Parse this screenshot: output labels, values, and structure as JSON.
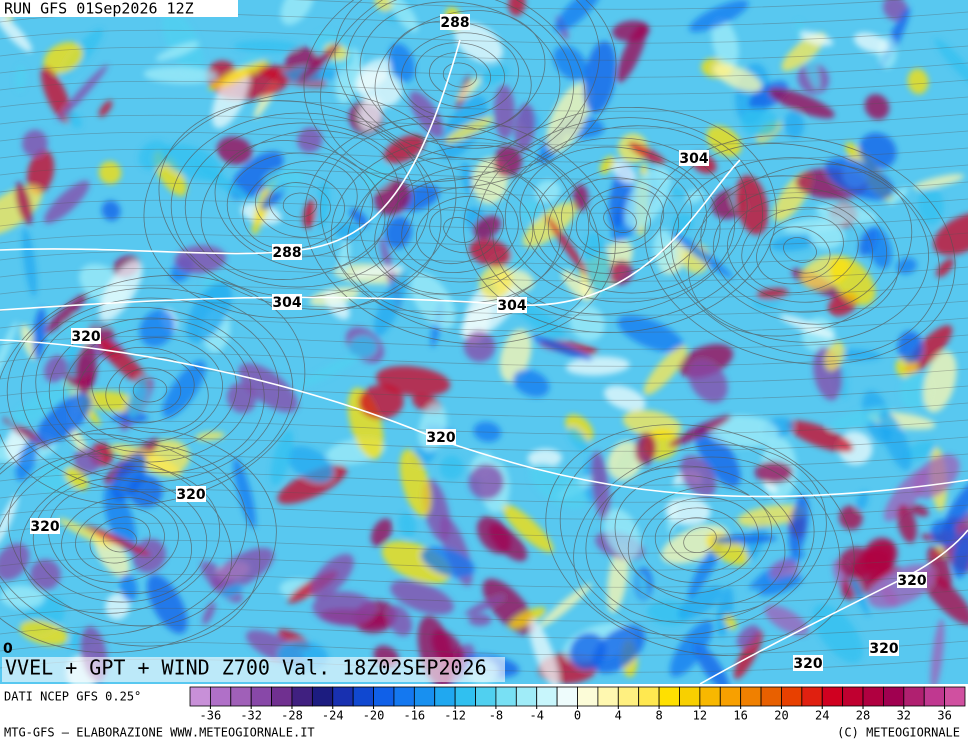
{
  "header": {
    "run": "RUN GFS 01Sep2026 12Z"
  },
  "map": {
    "contour_labels": [
      288,
      304,
      288,
      304,
      304,
      320,
      320,
      320,
      320,
      320,
      320,
      320
    ],
    "corner_label": "0",
    "title": "VVEL + GPT + WIND Z700 Val. 18Z02SEP2026"
  },
  "legend": {
    "source": "DATI NCEP GFS 0.25°",
    "range": [
      -38,
      38
    ],
    "ticks": [
      -36,
      -32,
      -28,
      -24,
      -20,
      -16,
      -12,
      -8,
      -4,
      0,
      4,
      8,
      12,
      16,
      20,
      24,
      28,
      32,
      36
    ],
    "colors": [
      "#c890d8",
      "#b070c8",
      "#a060b8",
      "#8848a8",
      "#703090",
      "#402080",
      "#1c1c80",
      "#1830b0",
      "#1048d0",
      "#1060e8",
      "#1478f0",
      "#1890f0",
      "#20a8f0",
      "#30c0f0",
      "#50d0f0",
      "#78e0f4",
      "#a0ecf8",
      "#c8f6fc",
      "#eefcfc",
      "#fcfcd8",
      "#fff8b0",
      "#fff080",
      "#ffe850",
      "#ffe000",
      "#f8d000",
      "#f8b800",
      "#f8a000",
      "#f08000",
      "#e86000",
      "#e84000",
      "#e02010",
      "#d00020",
      "#c00030",
      "#b00040",
      "#a00050",
      "#b02070",
      "#c03890",
      "#d050a0"
    ]
  },
  "footer": {
    "left": "MTG-GFS — ELABORAZIONE WWW.METEOGIORNALE.IT",
    "right": "(C) METEOGIORNALE"
  }
}
